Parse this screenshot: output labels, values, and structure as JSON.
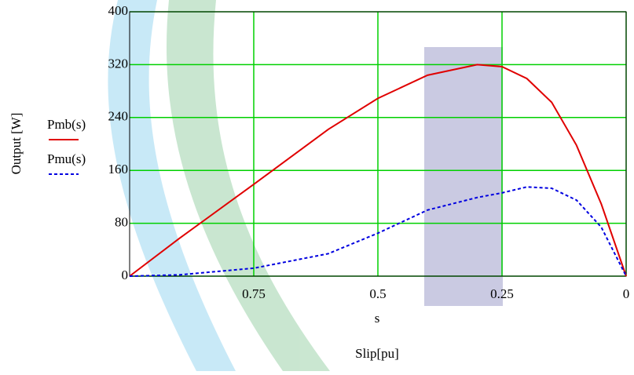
{
  "chart_data": {
    "type": "line",
    "x_label": "s",
    "x_label_2": "Slip[pu]",
    "y_label": "Output [W]",
    "x": [
      1,
      0.9,
      0.75,
      0.6,
      0.5,
      0.4,
      0.3,
      0.25,
      0.2,
      0.15,
      0.1,
      0.05,
      0
    ],
    "series": [
      {
        "name": "Pmb(s)",
        "color": "#e00000",
        "dash": false,
        "values": [
          0,
          57,
          139,
          222,
          269,
          304,
          320,
          317,
          299,
          263,
          198,
          109,
          0
        ]
      },
      {
        "name": "Pmu(s)",
        "color": "#0000e0",
        "dash": true,
        "values": [
          0,
          2,
          12,
          34,
          65,
          100,
          119,
          126,
          135,
          133,
          115,
          74,
          0
        ]
      }
    ],
    "xlim": [
      1,
      0
    ],
    "xticks": [
      0.75,
      0.5,
      0.25,
      0
    ],
    "ylim": [
      0,
      400
    ],
    "yticks": [
      0,
      80,
      160,
      240,
      320,
      400
    ],
    "grid": true
  }
}
